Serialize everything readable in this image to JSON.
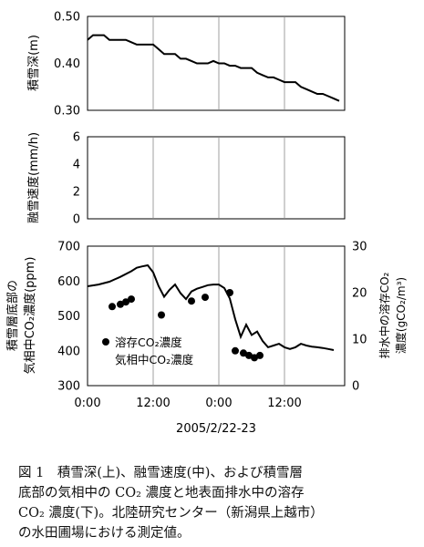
{
  "figure": {
    "time_ticks": [
      "0:00",
      "12:00",
      "0:00",
      "12:00"
    ],
    "date_label": "2005/2/22-23"
  },
  "chart_data": [
    {
      "type": "line",
      "ylabel": "積雪深(m)",
      "ylim": [
        0.3,
        0.5
      ],
      "yticks": [
        "0.30",
        "0.40",
        "0.50"
      ],
      "grid": "vertical",
      "series": [
        {
          "values": [
            [
              0,
              0.45
            ],
            [
              1,
              0.46
            ],
            [
              2,
              0.46
            ],
            [
              3,
              0.46
            ],
            [
              4,
              0.45
            ],
            [
              5,
              0.45
            ],
            [
              6,
              0.45
            ],
            [
              7,
              0.45
            ],
            [
              8,
              0.445
            ],
            [
              9,
              0.44
            ],
            [
              10,
              0.44
            ],
            [
              11,
              0.44
            ],
            [
              12,
              0.44
            ],
            [
              13,
              0.43
            ],
            [
              14,
              0.42
            ],
            [
              15,
              0.42
            ],
            [
              16,
              0.42
            ],
            [
              17,
              0.41
            ],
            [
              18,
              0.41
            ],
            [
              19,
              0.405
            ],
            [
              20,
              0.4
            ],
            [
              21,
              0.4
            ],
            [
              22,
              0.4
            ],
            [
              23,
              0.405
            ],
            [
              24,
              0.4
            ],
            [
              25,
              0.4
            ],
            [
              26,
              0.395
            ],
            [
              27,
              0.395
            ],
            [
              28,
              0.39
            ],
            [
              29,
              0.39
            ],
            [
              30,
              0.39
            ],
            [
              31,
              0.38
            ],
            [
              32,
              0.375
            ],
            [
              33,
              0.37
            ],
            [
              34,
              0.37
            ],
            [
              35,
              0.365
            ],
            [
              36,
              0.36
            ],
            [
              37,
              0.36
            ],
            [
              38,
              0.36
            ],
            [
              39,
              0.35
            ],
            [
              40,
              0.345
            ],
            [
              41,
              0.34
            ],
            [
              42,
              0.335
            ],
            [
              43,
              0.335
            ],
            [
              44,
              0.33
            ],
            [
              45,
              0.325
            ],
            [
              46,
              0.32
            ]
          ]
        }
      ]
    },
    {
      "type": "line",
      "ylabel": "融雪速度(mm/h)",
      "ylim": [
        0,
        6
      ],
      "yticks": [
        "0",
        "2",
        "4",
        "6"
      ],
      "grid": "vertical",
      "series": []
    },
    {
      "type": "line",
      "ylabel": "積雪層底部の",
      "ylabel2": "気相中CO₂濃度(ppm)",
      "ylim": [
        300,
        700
      ],
      "yticks": [
        "300",
        "400",
        "500",
        "600",
        "700"
      ],
      "y2label": "排水中の溶存CO₂",
      "y2label2": "濃度(gCO₂/m³)",
      "y2lim": [
        0,
        30
      ],
      "y2ticks": [
        "0",
        "10",
        "20",
        "30"
      ],
      "grid": "vertical",
      "series": [
        {
          "name": "気相中CO₂濃度",
          "style": "line",
          "axis": "left",
          "values": [
            [
              0,
              585
            ],
            [
              2,
              590
            ],
            [
              4,
              598
            ],
            [
              6,
              612
            ],
            [
              8,
              628
            ],
            [
              9,
              638
            ],
            [
              10,
              642
            ],
            [
              11,
              645
            ],
            [
              12,
              625
            ],
            [
              13,
              585
            ],
            [
              14,
              555
            ],
            [
              15,
              575
            ],
            [
              16,
              590
            ],
            [
              17,
              565
            ],
            [
              18,
              548
            ],
            [
              19,
              570
            ],
            [
              20,
              578
            ],
            [
              21,
              583
            ],
            [
              22,
              588
            ],
            [
              23,
              590
            ],
            [
              24,
              590
            ],
            [
              25,
              580
            ],
            [
              26,
              550
            ],
            [
              27,
              490
            ],
            [
              28,
              440
            ],
            [
              29,
              475
            ],
            [
              30,
              445
            ],
            [
              31,
              455
            ],
            [
              32,
              428
            ],
            [
              33,
              410
            ],
            [
              34,
              415
            ],
            [
              35,
              420
            ],
            [
              36,
              410
            ],
            [
              37,
              405
            ],
            [
              38,
              410
            ],
            [
              39,
              420
            ],
            [
              40,
              415
            ],
            [
              41,
              412
            ],
            [
              42,
              410
            ],
            [
              43,
              408
            ],
            [
              44,
              405
            ],
            [
              45,
              402
            ]
          ]
        },
        {
          "name": "溶存CO₂濃度",
          "style": "points",
          "axis": "right",
          "values": [
            [
              4.5,
              17
            ],
            [
              6,
              17.5
            ],
            [
              7,
              18
            ],
            [
              8,
              18.6
            ],
            [
              13.5,
              15.2
            ],
            [
              19,
              18.2
            ],
            [
              21.5,
              19
            ],
            [
              26,
              20
            ],
            [
              27,
              7.5
            ],
            [
              28.5,
              7
            ],
            [
              29.5,
              6.5
            ],
            [
              30.5,
              6
            ],
            [
              31.5,
              6.5
            ]
          ]
        }
      ]
    }
  ],
  "caption": {
    "line1": "図 1　積雪深(上)、融雪速度(中)、および積雪層",
    "line2": "底部の気相中の CO₂ 濃度と地表面排水中の溶存",
    "line3": "CO₂ 濃度(下)。北陸研究センター（新潟県上越市）",
    "line4": "の水田圃場における測定値。"
  }
}
